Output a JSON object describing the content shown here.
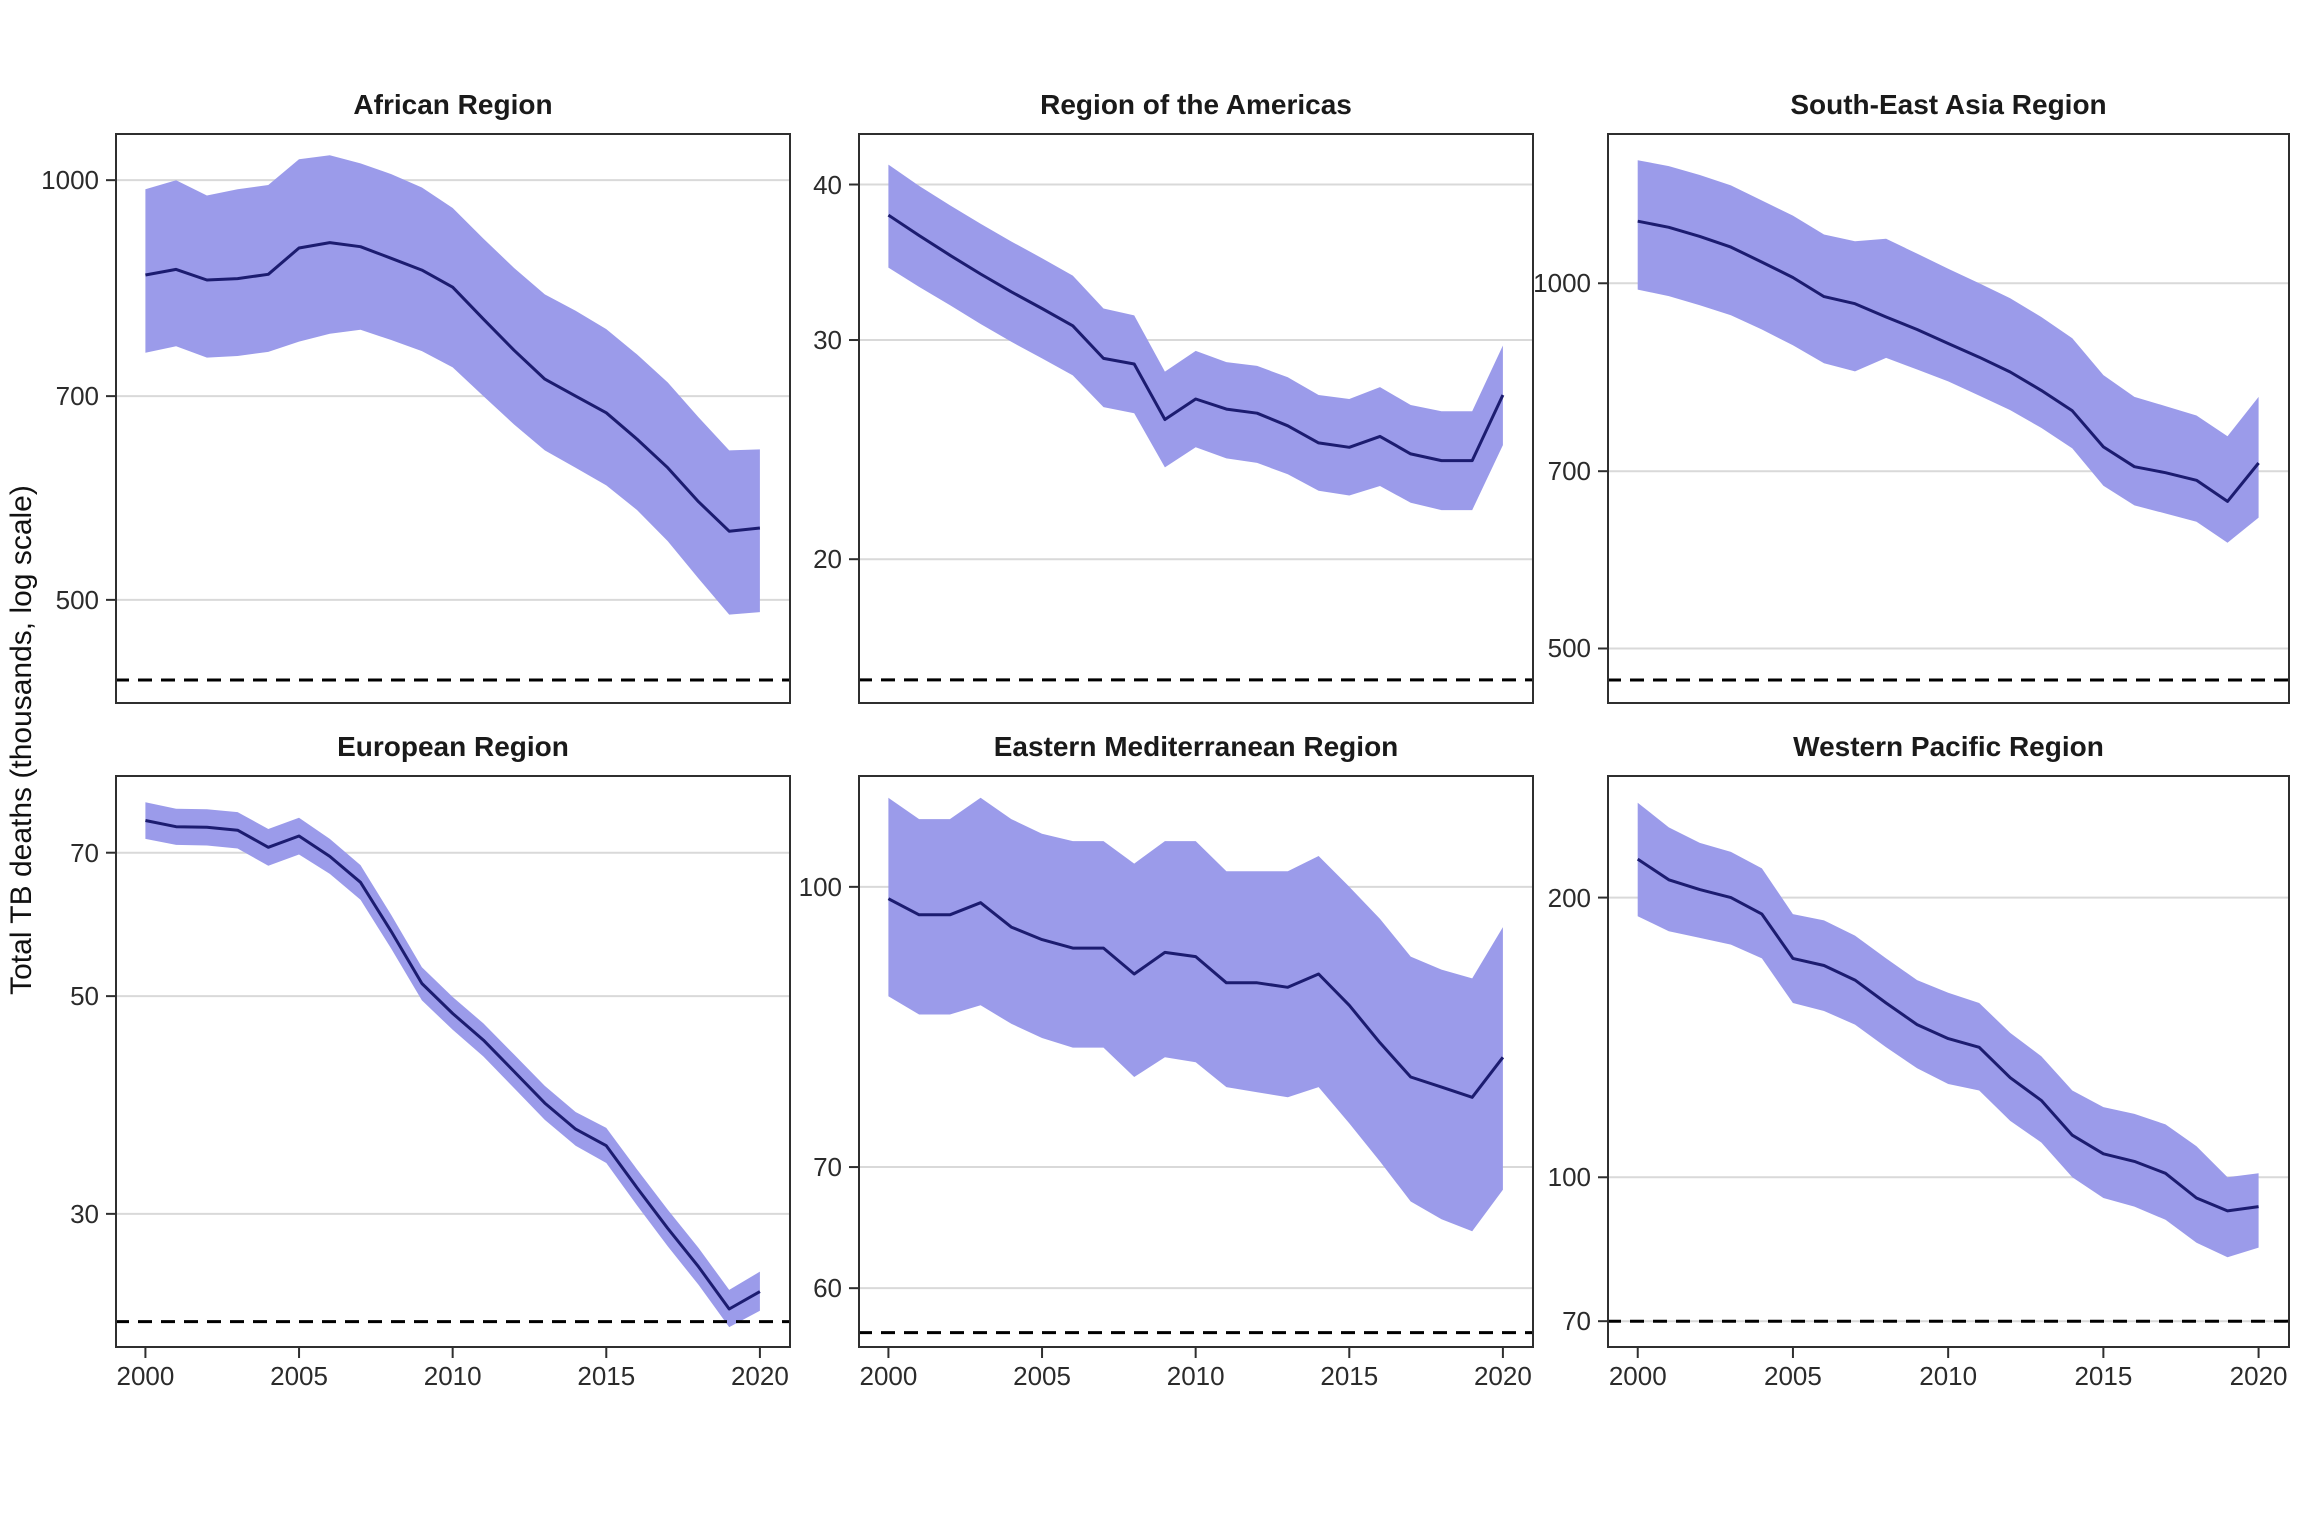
{
  "figure": {
    "y_axis_title": "Total TB deaths (thousands, log scale)"
  },
  "chart_data": {
    "type": "area",
    "title": "",
    "ylabel": "Total TB deaths (thousands, log scale)",
    "xlabel": "",
    "grid": "horizontal-only",
    "legend_position": "none",
    "x": [
      2000,
      2001,
      2002,
      2003,
      2004,
      2005,
      2006,
      2007,
      2008,
      2009,
      2010,
      2011,
      2012,
      2013,
      2014,
      2015,
      2016,
      2017,
      2018,
      2019,
      2020
    ],
    "x_tick_labels": [
      "2000",
      "2005",
      "2010",
      "2015",
      "2020"
    ],
    "x_tick_years": [
      2000,
      2005,
      2010,
      2015,
      2020
    ],
    "colors": {
      "ribbon": "#9b9bea",
      "line": "#1c1c70",
      "grid": "#d9d9d9",
      "milestone_dashed": "#000000",
      "panel_border": "#2f2f2f",
      "text": "#1a1a1a"
    },
    "panels": [
      {
        "title": "African Region",
        "yticks": [
          1000,
          700,
          500
        ],
        "ylim": [
          1081,
          421
        ],
        "milestone": 438,
        "series": [
          {
            "name": "best estimate",
            "values": [
              855,
              863,
              848,
              850,
              856,
              894,
              902,
              896,
              879,
              862,
              838,
              795,
              755,
              720,
              700,
              681,
              652,
              622,
              588,
              560,
              563
            ]
          },
          {
            "name": "upper bound",
            "values": [
              985,
              1000,
              975,
              985,
              992,
              1035,
              1042,
              1028,
              1010,
              988,
              955,
              908,
              865,
              828,
              806,
              782,
              750,
              716,
              676,
              640,
              641
            ]
          },
          {
            "name": "lower bound",
            "values": [
              752,
              760,
              746,
              748,
              753,
              766,
              776,
              781,
              768,
              754,
              734,
              700,
              668,
              640,
              622,
              604,
              580,
              551,
              518,
              488,
              490
            ]
          }
        ]
      },
      {
        "title": "Region of the Americas",
        "yticks": [
          40,
          30,
          20
        ],
        "ylim": [
          44.0,
          15.3
        ],
        "milestone": 16.0,
        "series": [
          {
            "name": "best estimate",
            "values": [
              37.8,
              36.4,
              35.1,
              33.9,
              32.8,
              31.8,
              30.8,
              29.0,
              28.7,
              25.9,
              26.9,
              26.4,
              26.2,
              25.6,
              24.8,
              24.6,
              25.1,
              24.3,
              24.0,
              24.0,
              27.1
            ]
          },
          {
            "name": "upper bound",
            "values": [
              41.5,
              39.9,
              38.5,
              37.2,
              36.0,
              34.9,
              33.8,
              31.8,
              31.4,
              28.3,
              29.4,
              28.8,
              28.6,
              28.0,
              27.1,
              26.9,
              27.5,
              26.6,
              26.3,
              26.3,
              29.7
            ]
          },
          {
            "name": "lower bound",
            "values": [
              34.3,
              33.1,
              32.0,
              30.9,
              29.9,
              29.0,
              28.1,
              26.5,
              26.2,
              23.7,
              24.6,
              24.1,
              23.9,
              23.4,
              22.7,
              22.5,
              22.9,
              22.2,
              21.9,
              21.9,
              24.7
            ]
          }
        ]
      },
      {
        "title": "South-East Asia Region",
        "yticks": [
          1000,
          700,
          500
        ],
        "ylim": [
          1330,
          450
        ],
        "milestone": 471,
        "series": [
          {
            "name": "best estimate",
            "values": [
              1125,
              1112,
              1093,
              1071,
              1041,
              1011,
              975,
              962,
              938,
              916,
              892,
              869,
              845,
              816,
              785,
              733,
              706,
              698,
              688,
              661,
              711
            ]
          },
          {
            "name": "upper bound",
            "values": [
              1263,
              1249,
              1228,
              1204,
              1170,
              1137,
              1097,
              1083,
              1088,
              1058,
              1028,
              1000,
              972,
              938,
              901,
              840,
              806,
              792,
              778,
              748,
              806
            ]
          },
          {
            "name": "lower bound",
            "values": [
              988,
              976,
              959,
              941,
              916,
              889,
              859,
              846,
              868,
              849,
              830,
              808,
              786,
              760,
              731,
              681,
              656,
              646,
              636,
              611,
              641
            ]
          }
        ]
      },
      {
        "title": "European Region",
        "yticks": [
          70,
          50,
          30
        ],
        "ylim": [
          84.0,
          21.9
        ],
        "milestone": 23.3,
        "series": [
          {
            "name": "best estimate",
            "values": [
              75.5,
              74.4,
              74.3,
              73.8,
              70.9,
              72.8,
              69.4,
              65.3,
              58.2,
              51.5,
              48.0,
              45.1,
              41.9,
              38.9,
              36.6,
              35.2,
              31.9,
              29.0,
              26.5,
              24.0,
              25.0
            ]
          },
          {
            "name": "upper bound",
            "values": [
              78.8,
              77.6,
              77.5,
              77.0,
              74.0,
              76.0,
              72.3,
              68.0,
              60.5,
              53.5,
              49.9,
              46.9,
              43.6,
              40.5,
              38.1,
              36.7,
              33.3,
              30.3,
              27.7,
              25.1,
              26.2
            ]
          },
          {
            "name": "lower bound",
            "values": [
              72.3,
              71.3,
              71.2,
              70.7,
              67.9,
              69.7,
              66.6,
              62.7,
              55.9,
              49.5,
              46.2,
              43.4,
              40.3,
              37.4,
              35.2,
              33.8,
              30.6,
              27.8,
              25.4,
              23.0,
              23.9
            ]
          }
        ]
      },
      {
        "title": "Eastern Mediterranean Region",
        "yticks": [
          100,
          70,
          60
        ],
        "ylim": [
          115.3,
          55.6
        ],
        "milestone": 56.7,
        "series": [
          {
            "name": "best estimate",
            "values": [
              98.5,
              96.5,
              96.5,
              98.0,
              95.0,
              93.5,
              92.5,
              92.5,
              89.5,
              92.0,
              91.5,
              88.5,
              88.5,
              88.0,
              89.5,
              86.0,
              82.0,
              78.5,
              77.5,
              76.5,
              80.5
            ]
          },
          {
            "name": "upper bound",
            "values": [
              112,
              109,
              109,
              112,
              109,
              107,
              106,
              106,
              103,
              106,
              106,
              102,
              102,
              102,
              104,
              100,
              96,
              91.5,
              90,
              89,
              95
            ]
          },
          {
            "name": "lower bound",
            "values": [
              87,
              85,
              85,
              86,
              84,
              82.5,
              81.5,
              81.5,
              78.5,
              80.5,
              80,
              77.5,
              77,
              76.5,
              77.5,
              74,
              70.5,
              67,
              65.5,
              64.5,
              68
            ]
          }
        ]
      },
      {
        "title": "Western Pacific Region",
        "yticks": [
          200,
          100,
          70
        ],
        "ylim": [
          271,
          65.5
        ],
        "milestone": 70,
        "series": [
          {
            "name": "best estimate",
            "values": [
              220,
              209,
              204,
              200,
              192,
              172,
              169,
              163,
              154,
              146,
              141,
              138,
              128,
              121,
              111,
              106,
              104,
              101,
              95,
              92,
              93
            ]
          },
          {
            "name": "upper bound",
            "values": [
              253,
              238,
              229,
              224,
              215,
              192,
              189,
              182,
              172,
              163,
              158,
              154,
              143,
              135,
              124,
              119,
              117,
              114,
              108,
              100,
              101
            ]
          },
          {
            "name": "lower bound",
            "values": [
              191,
              184,
              181,
              178,
              172,
              154,
              151,
              146,
              138,
              131,
              126,
              124,
              115,
              109,
              100,
              95,
              93,
              90,
              85,
              82,
              84
            ]
          }
        ]
      }
    ]
  }
}
